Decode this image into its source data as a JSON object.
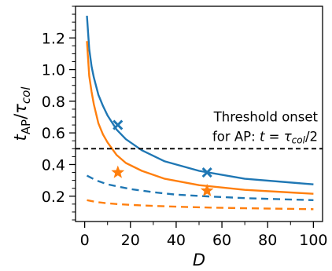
{
  "chart_data": {
    "type": "line",
    "xlabel": "D",
    "ylabel": "t_AP/τ_col",
    "xlim": [
      -4,
      104
    ],
    "ylim": [
      0.04,
      1.4
    ],
    "x_ticks": [
      0,
      20,
      40,
      60,
      80,
      100
    ],
    "y_ticks": [
      0.2,
      0.4,
      0.6,
      0.8,
      1.0,
      1.2
    ],
    "x_tick_labels": [
      "0",
      "20",
      "40",
      "60",
      "80",
      "100"
    ],
    "y_tick_labels": [
      "0.2",
      "0.4",
      "0.6",
      "0.8",
      "1.0",
      "1.2"
    ],
    "x_minor_tick_step": 10,
    "y_minor_tick_step": 0.05,
    "grid": false,
    "legend": "none",
    "threshold": {
      "y": 0.5,
      "label_line1": "Threshold onset",
      "label_line2_prefix": "for AP: ",
      "label_line2_math": "t = τ",
      "label_line2_sub": "col",
      "label_line2_suffix": "/2",
      "color": "#000000",
      "style": "dashed"
    },
    "series": [
      {
        "color": "#1f77b4",
        "style": "solid",
        "x": [
          1,
          2,
          3,
          4,
          6,
          8,
          10,
          14,
          18,
          25,
          35,
          50,
          70,
          100
        ],
        "y": [
          1.34,
          1.13,
          1.02,
          0.95,
          0.84,
          0.77,
          0.71,
          0.62,
          0.56,
          0.49,
          0.42,
          0.36,
          0.31,
          0.275
        ]
      },
      {
        "color": "#ff7f0e",
        "style": "solid",
        "x": [
          1,
          2,
          3,
          4,
          6,
          8,
          10,
          14,
          18,
          25,
          35,
          50,
          70,
          100
        ],
        "y": [
          1.18,
          0.96,
          0.86,
          0.78,
          0.66,
          0.59,
          0.54,
          0.46,
          0.41,
          0.36,
          0.31,
          0.27,
          0.24,
          0.215
        ]
      },
      {
        "color": "#1f77b4",
        "style": "dashed",
        "x": [
          1,
          5,
          10,
          15,
          20,
          30,
          40,
          55,
          70,
          85,
          100
        ],
        "y": [
          0.33,
          0.3,
          0.275,
          0.26,
          0.245,
          0.225,
          0.21,
          0.198,
          0.188,
          0.181,
          0.175
        ]
      },
      {
        "color": "#ff7f0e",
        "style": "dashed",
        "x": [
          1,
          5,
          10,
          15,
          20,
          30,
          40,
          55,
          70,
          85,
          100
        ],
        "y": [
          0.175,
          0.163,
          0.155,
          0.149,
          0.145,
          0.139,
          0.134,
          0.128,
          0.124,
          0.121,
          0.118
        ]
      }
    ],
    "markers": [
      {
        "shape": "x",
        "color": "#1f77b4",
        "x": 14.5,
        "y": 0.65
      },
      {
        "shape": "x",
        "color": "#1f77b4",
        "x": 53.5,
        "y": 0.35
      },
      {
        "shape": "star",
        "color": "#ff7f0e",
        "x": 14.5,
        "y": 0.35
      },
      {
        "shape": "star",
        "color": "#ff7f0e",
        "x": 53.5,
        "y": 0.235
      }
    ]
  }
}
